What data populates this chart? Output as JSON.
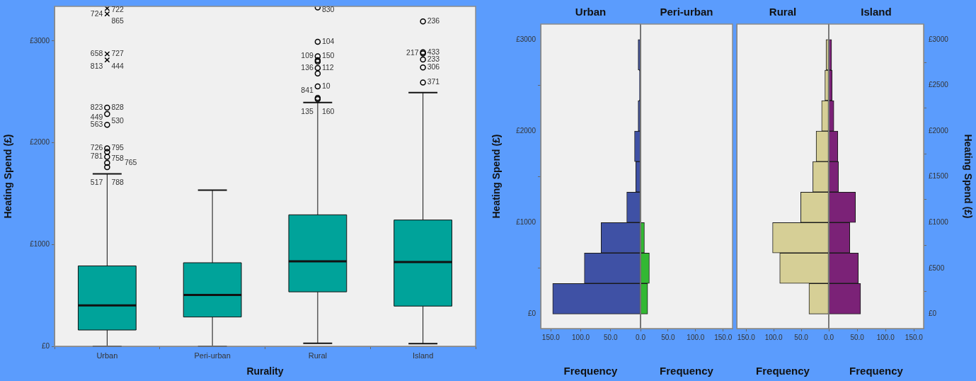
{
  "chart_data": [
    {
      "type": "box",
      "xlabel": "Rurality",
      "ylabel": "Heating Spend (£)",
      "categories": [
        "Urban",
        "Peri-urban",
        "Rural",
        "Island"
      ],
      "ylim": [
        0,
        3340
      ],
      "yticks": [
        {
          "value": 0,
          "label": "£0"
        },
        {
          "value": 1000,
          "label": "£1000"
        },
        {
          "value": 2000,
          "label": "£2000"
        },
        {
          "value": 3000,
          "label": "£3000"
        }
      ],
      "series": [
        {
          "type": "box",
          "color": "#00a39a",
          "boxes": [
            {
              "low": 0,
              "q1": 160,
              "median": 402,
              "q3": 790,
              "high": 1694
            },
            {
              "low": 0,
              "q1": 288,
              "median": 504,
              "q3": 821,
              "high": 1534
            },
            {
              "low": 29,
              "q1": 535,
              "median": 835,
              "q3": 1292,
              "high": 2395
            },
            {
              "low": 26,
              "q1": 395,
              "median": 828,
              "q3": 1241,
              "high": 2492
            }
          ]
        },
        {
          "type": "scatter",
          "marker": "circle",
          "color": "#000000",
          "x": [
            "Urban",
            "Urban",
            "Urban",
            "Urban",
            "Urban",
            "Urban",
            "Urban",
            "Urban",
            "Rural",
            "Rural",
            "Rural",
            "Rural",
            "Rural",
            "Rural",
            "Rural",
            "Rural",
            "Rural",
            "Rural",
            "Island",
            "Island",
            "Island",
            "Island",
            "Island",
            "Island"
          ],
          "values": [
            2345,
            2283,
            2177,
            1945,
            1910,
            1862,
            1803,
            1760,
            3330,
            2992,
            2849,
            2811,
            2797,
            2735,
            2681,
            2554,
            2440,
            2428,
            3192,
            2890,
            2878,
            2818,
            2740,
            2592
          ]
        },
        {
          "type": "scatter",
          "marker": "cross",
          "color": "#000000",
          "x": [
            "Urban",
            "Urban",
            "Urban",
            "Urban"
          ],
          "values": [
            3320,
            3266,
            2873,
            2814
          ]
        }
      ],
      "annotations": [
        {
          "text": "722",
          "x": "Urban",
          "y": 3320
        },
        {
          "text": "724",
          "x": "Urban",
          "y": 3266
        },
        {
          "text": "865",
          "x": "Urban",
          "y": 3266
        },
        {
          "text": "727",
          "x": "Urban",
          "y": 2873
        },
        {
          "text": "658",
          "x": "Urban",
          "y": 2873
        },
        {
          "text": "444",
          "x": "Urban",
          "y": 2814
        },
        {
          "text": "813",
          "x": "Urban",
          "y": 2814
        },
        {
          "text": "828",
          "x": "Urban",
          "y": 2345
        },
        {
          "text": "823",
          "x": "Urban",
          "y": 2345
        },
        {
          "text": "530",
          "x": "Urban",
          "y": 2283
        },
        {
          "text": "563",
          "x": "Urban",
          "y": 2177
        },
        {
          "text": "449",
          "x": "Urban",
          "y": 2177
        },
        {
          "text": "795",
          "x": "Urban",
          "y": 1945
        },
        {
          "text": "726",
          "x": "Urban",
          "y": 1945
        },
        {
          "text": "758",
          "x": "Urban",
          "y": 1910
        },
        {
          "text": "781",
          "x": "Urban",
          "y": 1862
        },
        {
          "text": "765",
          "x": "Urban",
          "y": 1803
        },
        {
          "text": "788",
          "x": "Urban",
          "y": 1694
        },
        {
          "text": "517",
          "x": "Urban",
          "y": 1694
        },
        {
          "text": "830",
          "x": "Rural",
          "y": 3330
        },
        {
          "text": "104",
          "x": "Rural",
          "y": 2992
        },
        {
          "text": "150",
          "x": "Rural",
          "y": 2849
        },
        {
          "text": "109",
          "x": "Rural",
          "y": 2849
        },
        {
          "text": "112",
          "x": "Rural",
          "y": 2735
        },
        {
          "text": "136",
          "x": "Rural",
          "y": 2735
        },
        {
          "text": "10",
          "x": "Rural",
          "y": 2554
        },
        {
          "text": "841",
          "x": "Rural",
          "y": 2440
        },
        {
          "text": "160",
          "x": "Rural",
          "y": 2440
        },
        {
          "text": "135",
          "x": "Rural",
          "y": 2395
        },
        {
          "text": "236",
          "x": "Island",
          "y": 3192
        },
        {
          "text": "433",
          "x": "Island",
          "y": 2890
        },
        {
          "text": "217",
          "x": "Island",
          "y": 2878
        },
        {
          "text": "233",
          "x": "Island",
          "y": 2818
        },
        {
          "text": "306",
          "x": "Island",
          "y": 2740
        },
        {
          "text": "371",
          "x": "Island",
          "y": 2592
        }
      ]
    },
    {
      "type": "histogram",
      "orientation": "horizontal",
      "title": "Urban",
      "xlabel": "Frequency",
      "ylabel": "Heating Spend (£)",
      "bins": [
        0,
        333,
        667,
        1000,
        1333,
        1667,
        2000,
        2333,
        2667,
        3000
      ],
      "values": [
        147,
        94,
        66,
        23,
        8,
        10,
        4,
        2,
        4
      ],
      "color": "#3f51a5",
      "xlim": [
        167,
        0
      ],
      "xticks": [
        {
          "value": 150,
          "label": "150.0"
        },
        {
          "value": 100,
          "label": "100.0"
        },
        {
          "value": 50,
          "label": "50.0"
        },
        {
          "value": 0,
          "label": "0.0"
        }
      ],
      "ylim": [
        -160,
        3170
      ],
      "yticks": [
        {
          "value": 0,
          "label": "£0"
        },
        {
          "value": 1000,
          "label": "£1000"
        },
        {
          "value": 2000,
          "label": "£2000"
        },
        {
          "value": 3000,
          "label": "£3000"
        }
      ]
    },
    {
      "type": "histogram",
      "orientation": "horizontal",
      "title": "Peri-urban",
      "xlabel": "Frequency",
      "bins": [
        0,
        333,
        667,
        1000,
        1333,
        1667,
        2000,
        2333,
        2667,
        3000
      ],
      "values": [
        13,
        16,
        7,
        null,
        null,
        0,
        0,
        0,
        0
      ],
      "color": "#33b833",
      "xlim": [
        0,
        167
      ],
      "xticks": [
        {
          "value": 50,
          "label": "50.0"
        },
        {
          "value": 100,
          "label": "100.0"
        },
        {
          "value": 150,
          "label": "150.0"
        }
      ],
      "ylim": [
        -160,
        3170
      ],
      "tick_labels": "x"
    },
    {
      "type": "histogram",
      "orientation": "horizontal",
      "title": "Rural",
      "xlabel": "Frequency",
      "bins": [
        0,
        333,
        667,
        1000,
        1333,
        1667,
        2000,
        2333,
        2667,
        3000
      ],
      "values": [
        36,
        89,
        102,
        51,
        29,
        23,
        13,
        7,
        5
      ],
      "color": "#d6cf96",
      "xlim": [
        167,
        0
      ],
      "xticks": [
        {
          "value": 150,
          "label": "150.0"
        },
        {
          "value": 100,
          "label": "100.0"
        },
        {
          "value": 50,
          "label": "50.0"
        },
        {
          "value": 0,
          "label": "0.0"
        }
      ],
      "ylim": [
        -160,
        3170
      ],
      "tick_labels": "x"
    },
    {
      "type": "histogram",
      "orientation": "horizontal",
      "title": "Island",
      "xlabel": "Frequency",
      "ylabel": "Heating Spend (£)",
      "bins": [
        0,
        333,
        667,
        1000,
        1333,
        1667,
        2000,
        2333,
        2667,
        3000
      ],
      "values": [
        56,
        52,
        37,
        47,
        17,
        16,
        9,
        6,
        5
      ],
      "color": "#7b2277",
      "xlim": [
        0,
        167
      ],
      "xticks": [
        {
          "value": 50,
          "label": "50.0"
        },
        {
          "value": 100,
          "label": "100.0"
        },
        {
          "value": 150,
          "label": "150.0"
        }
      ],
      "ylim": [
        -160,
        3170
      ],
      "yticks": [
        {
          "value": 0,
          "label": "£0"
        },
        {
          "value": 500,
          "label": "£500"
        },
        {
          "value": 1000,
          "label": "£1000"
        },
        {
          "value": 1500,
          "label": "£1500"
        },
        {
          "value": 2000,
          "label": "£2000"
        },
        {
          "value": 2500,
          "label": "£2500"
        },
        {
          "value": 3000,
          "label": "£3000"
        }
      ]
    }
  ]
}
